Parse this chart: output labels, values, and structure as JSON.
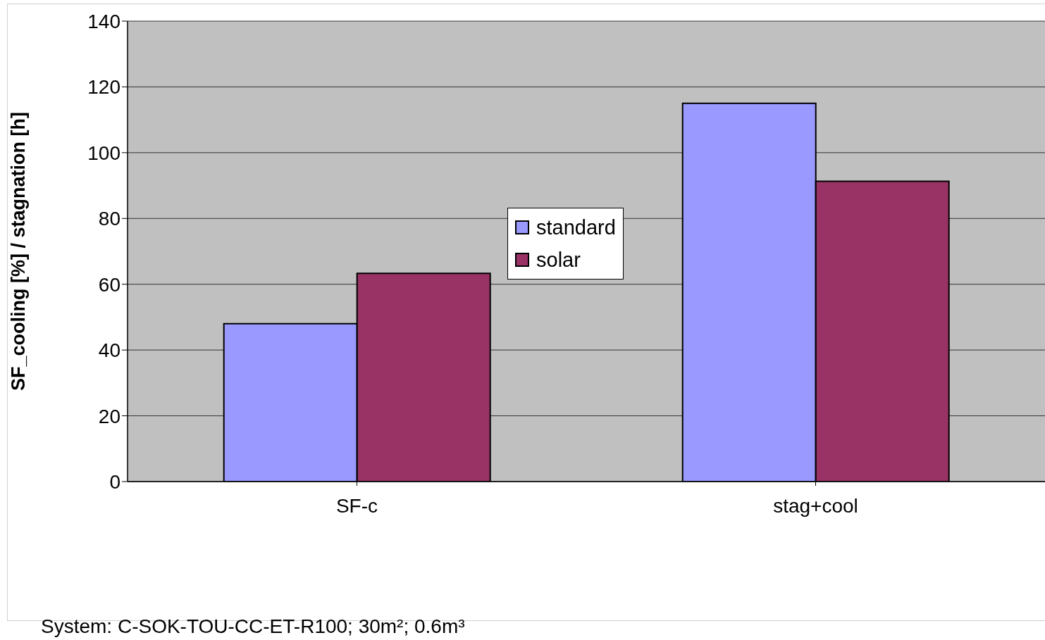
{
  "chart_data": {
    "type": "bar",
    "ylabel": "SF_cooling [%] / stagnation [h]",
    "categories": [
      "SF-c",
      "stag+cool"
    ],
    "series": [
      {
        "name": "standard",
        "color": "#9999ff",
        "values": [
          48,
          115
        ]
      },
      {
        "name": "solar",
        "color": "#993366",
        "values": [
          63.3,
          91.3
        ]
      }
    ],
    "ylim": [
      0,
      140
    ],
    "yticks": [
      0,
      20,
      40,
      60,
      80,
      100,
      120,
      140
    ],
    "grid": "y",
    "legend": "center",
    "annotations": [
      "System: C-SOK-TOU-CC-ET-R100; 30m²; 0.6m³"
    ]
  }
}
